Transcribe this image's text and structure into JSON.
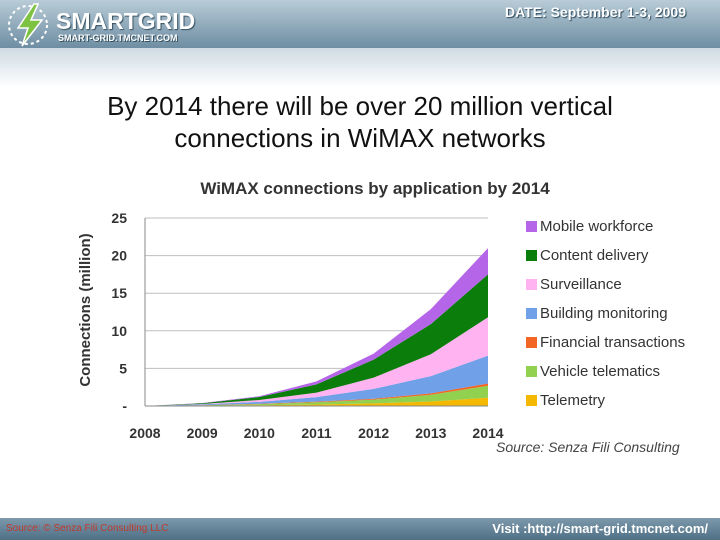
{
  "header": {
    "logo_name": "SMARTGRID",
    "logo_url": "SMART-GRID.TMCNET.COM",
    "date": "DATE: September 1-3, 2009"
  },
  "slide": {
    "title_line1": "By 2014 there will be over 20 million vertical",
    "title_line2": "connections in WiMAX networks"
  },
  "chart_data": {
    "type": "area",
    "stacked": true,
    "title": "WiMAX connections by application by 2014",
    "ylabel": "Connections (million)",
    "xlabel": "",
    "ylim": [
      0,
      25
    ],
    "yticks": [
      "-",
      "5",
      "10",
      "15",
      "20",
      "25"
    ],
    "grid": true,
    "legend_position": "right",
    "x": [
      "2008",
      "2009",
      "2010",
      "2011",
      "2012",
      "2013",
      "2014"
    ],
    "series": [
      {
        "name": "Telemetry",
        "color": "#f5b800",
        "values": [
          0.0,
          0.05,
          0.1,
          0.2,
          0.35,
          0.6,
          1.1
        ]
      },
      {
        "name": "Vehicle telematics",
        "color": "#92d050",
        "values": [
          0.0,
          0.05,
          0.15,
          0.3,
          0.5,
          0.9,
          1.6
        ]
      },
      {
        "name": "Financial transactions",
        "color": "#f26522",
        "values": [
          0.0,
          0.02,
          0.05,
          0.08,
          0.12,
          0.18,
          0.3
        ]
      },
      {
        "name": "Building monitoring",
        "color": "#6fa0e8",
        "values": [
          0.0,
          0.1,
          0.25,
          0.6,
          1.3,
          2.3,
          3.7
        ]
      },
      {
        "name": "Surveillance",
        "color": "#ffb3f0",
        "values": [
          0.0,
          0.05,
          0.25,
          0.6,
          1.5,
          2.9,
          5.1
        ]
      },
      {
        "name": "Content delivery",
        "color": "#0a7d0a",
        "values": [
          0.0,
          0.1,
          0.4,
          1.1,
          2.4,
          4.0,
          5.7
        ]
      },
      {
        "name": "Mobile workforce",
        "color": "#b566e8",
        "values": [
          0.0,
          0.03,
          0.1,
          0.4,
          0.8,
          2.0,
          3.5
        ]
      }
    ],
    "source_note": "Source: Senza Fili Consulting"
  },
  "footer": {
    "source": "Source: © Senza Fili Consulting LLC",
    "visit": "Visit :http://smart-grid.tmcnet.com/"
  }
}
